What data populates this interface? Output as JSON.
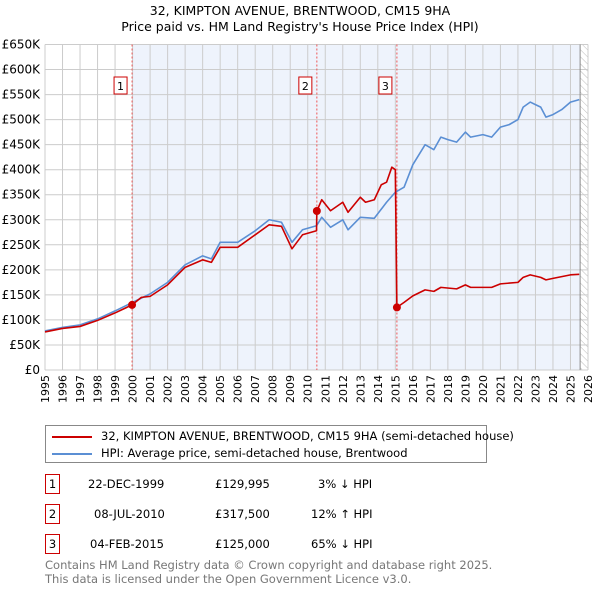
{
  "chart_data": {
    "type": "line",
    "title": "32, KIMPTON AVENUE, BRENTWOOD, CM15 9HA",
    "subtitle": "Price paid vs. HM Land Registry's House Price Index (HPI)",
    "xlim": [
      1995,
      2026
    ],
    "ylim": [
      0,
      650000
    ],
    "x_ticks": [
      "1995",
      "1996",
      "1997",
      "1998",
      "1999",
      "2000",
      "2001",
      "2002",
      "2003",
      "2004",
      "2005",
      "2006",
      "2007",
      "2008",
      "2009",
      "2010",
      "2011",
      "2012",
      "2013",
      "2014",
      "2015",
      "2016",
      "2017",
      "2018",
      "2019",
      "2020",
      "2021",
      "2022",
      "2023",
      "2024",
      "2025",
      "2026"
    ],
    "y_ticks": [
      "£0",
      "£50K",
      "£100K",
      "£150K",
      "£200K",
      "£250K",
      "£300K",
      "£350K",
      "£400K",
      "£450K",
      "£500K",
      "£550K",
      "£600K",
      "£650K"
    ],
    "grid": true,
    "series": [
      {
        "name": "32, KIMPTON AVENUE, BRENTWOOD, CM15 9HA (semi-detached house)",
        "color": "#cc0000",
        "x": [
          1995,
          1996,
          1997,
          1998,
          1999,
          1999.97,
          2000.5,
          2001,
          2002,
          2003,
          2004,
          2004.5,
          2005,
          2006,
          2007,
          2007.8,
          2008.5,
          2009.1,
          2009.7,
          2010.5,
          2010.52,
          2010.8,
          2011.3,
          2012,
          2012.3,
          2013,
          2013.3,
          2013.8,
          2014.2,
          2014.5,
          2014.8,
          2015.0,
          2015.09,
          2015.5,
          2016,
          2016.7,
          2017.2,
          2017.6,
          2018.5,
          2019,
          2019.3,
          2020.5,
          2021,
          2022,
          2022.3,
          2022.7,
          2023.3,
          2023.6,
          2024,
          2025,
          2025.5
        ],
        "y": [
          76,
          83,
          87,
          99,
          114,
          130,
          145,
          147,
          170,
          205,
          220,
          215,
          245,
          245,
          270,
          290,
          287,
          242,
          270,
          278,
          317.5,
          340,
          318,
          335,
          315,
          345,
          335,
          340,
          370,
          375,
          405,
          400,
          125,
          135,
          148,
          160,
          157,
          165,
          162,
          170,
          165,
          165,
          172,
          175,
          185,
          190,
          185,
          180,
          183,
          190,
          191
        ]
      },
      {
        "name": "HPI: Average price, semi-detached house, Brentwood",
        "color": "#5b8fd4",
        "x": [
          1995,
          1996,
          1997,
          1998,
          1999,
          2000,
          2001,
          2002,
          2003,
          2004,
          2004.5,
          2005,
          2006,
          2007,
          2007.8,
          2008.5,
          2009.1,
          2009.7,
          2010.5,
          2010.8,
          2011.3,
          2012,
          2012.3,
          2013,
          2013.8,
          2014.5,
          2015,
          2015.5,
          2016,
          2016.7,
          2017.2,
          2017.6,
          2018,
          2018.5,
          2019,
          2019.3,
          2020,
          2020.5,
          2021,
          2021.5,
          2022,
          2022.3,
          2022.7,
          2023,
          2023.3,
          2023.6,
          2024,
          2024.5,
          2025,
          2025.5
        ],
        "y": [
          78,
          85,
          90,
          102,
          118,
          135,
          152,
          175,
          210,
          228,
          222,
          255,
          255,
          278,
          300,
          295,
          255,
          280,
          288,
          305,
          285,
          300,
          280,
          305,
          303,
          335,
          355,
          365,
          410,
          450,
          440,
          465,
          460,
          455,
          475,
          465,
          470,
          465,
          485,
          490,
          500,
          525,
          535,
          530,
          525,
          505,
          510,
          520,
          535,
          540
        ]
      }
    ],
    "y_unit": "thousand GBP",
    "sales": [
      {
        "num": "1",
        "x": 1999.97,
        "y": 129.995
      },
      {
        "num": "2",
        "x": 2010.52,
        "y": 317.5
      },
      {
        "num": "3",
        "x": 2015.09,
        "y": 125
      }
    ]
  },
  "legend": {
    "property": "32, KIMPTON AVENUE, BRENTWOOD, CM15 9HA (semi-detached house)",
    "hpi": "HPI: Average price, semi-detached house, Brentwood"
  },
  "table": [
    {
      "num": "1",
      "date": "22-DEC-1999",
      "price": "£129,995",
      "hpi": "3% ↓ HPI"
    },
    {
      "num": "2",
      "date": "08-JUL-2010",
      "price": "£317,500",
      "hpi": "12% ↑ HPI"
    },
    {
      "num": "3",
      "date": "04-FEB-2015",
      "price": "£125,000",
      "hpi": "65% ↓ HPI"
    }
  ],
  "footer": {
    "line1": "Contains HM Land Registry data © Crown copyright and database right 2025.",
    "line2": "This data is licensed under the Open Government Licence v3.0."
  }
}
